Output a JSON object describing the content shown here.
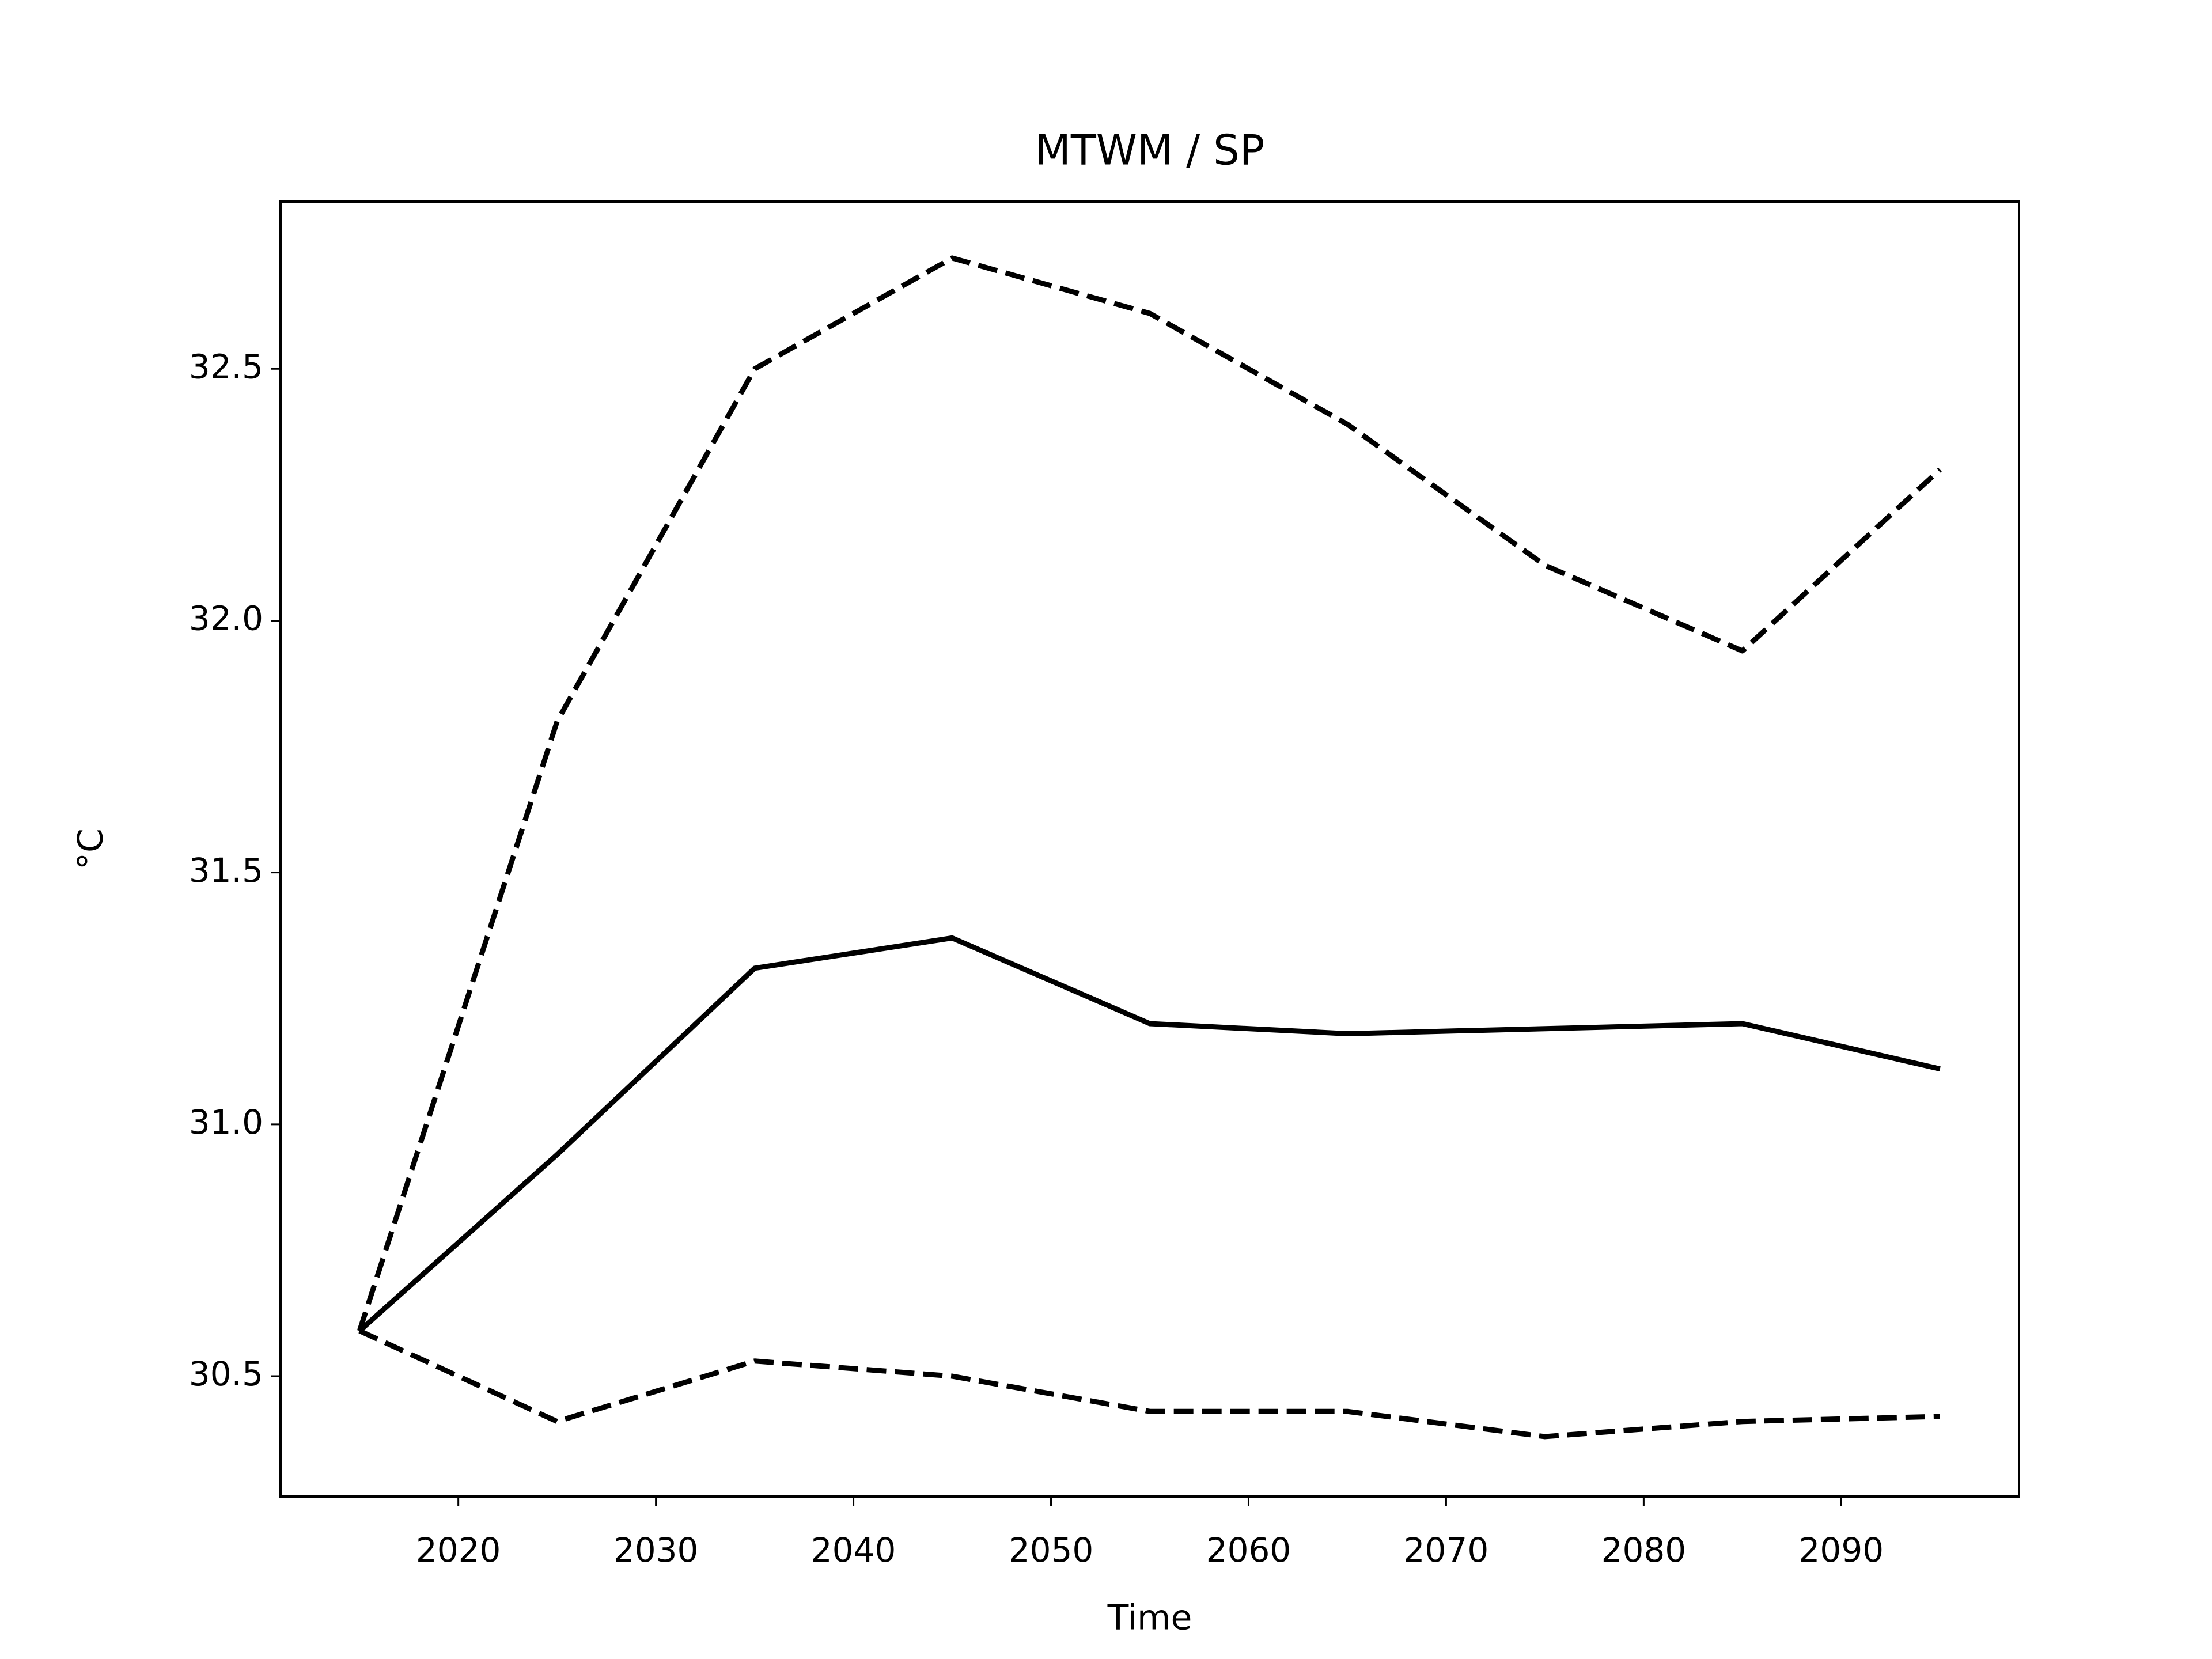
{
  "chart_data": {
    "type": "line",
    "title": "MTWM / SP",
    "x_label": "Time",
    "y_label": "°C",
    "x": [
      2015,
      2025,
      2035,
      2045,
      2055,
      2065,
      2075,
      2085,
      2095
    ],
    "series": [
      {
        "color": "#000000",
        "dashed": false,
        "values": [
          30.59,
          30.94,
          31.31,
          31.37,
          31.2,
          31.18,
          31.19,
          31.2,
          31.11
        ]
      },
      {
        "color": "#000000",
        "dashed": true,
        "values": [
          30.59,
          31.8,
          32.5,
          32.72,
          32.61,
          32.39,
          32.11,
          31.94,
          32.3
        ]
      },
      {
        "color": "#000000",
        "dashed": true,
        "values": [
          30.59,
          30.41,
          30.53,
          30.5,
          30.43,
          30.43,
          30.38,
          30.41,
          30.42
        ]
      }
    ],
    "xlim": [
      2011,
      2099
    ],
    "ylim": [
      30.261,
      32.832
    ],
    "xticks": [
      2020,
      2030,
      2040,
      2050,
      2060,
      2070,
      2080,
      2090
    ],
    "yticks": [
      30.5,
      {
        "value": 31.0,
        "label": "31.0"
      },
      31.5,
      {
        "value": 32.0,
        "label": "32.0"
      },
      32.5
    ],
    "grid": false
  }
}
